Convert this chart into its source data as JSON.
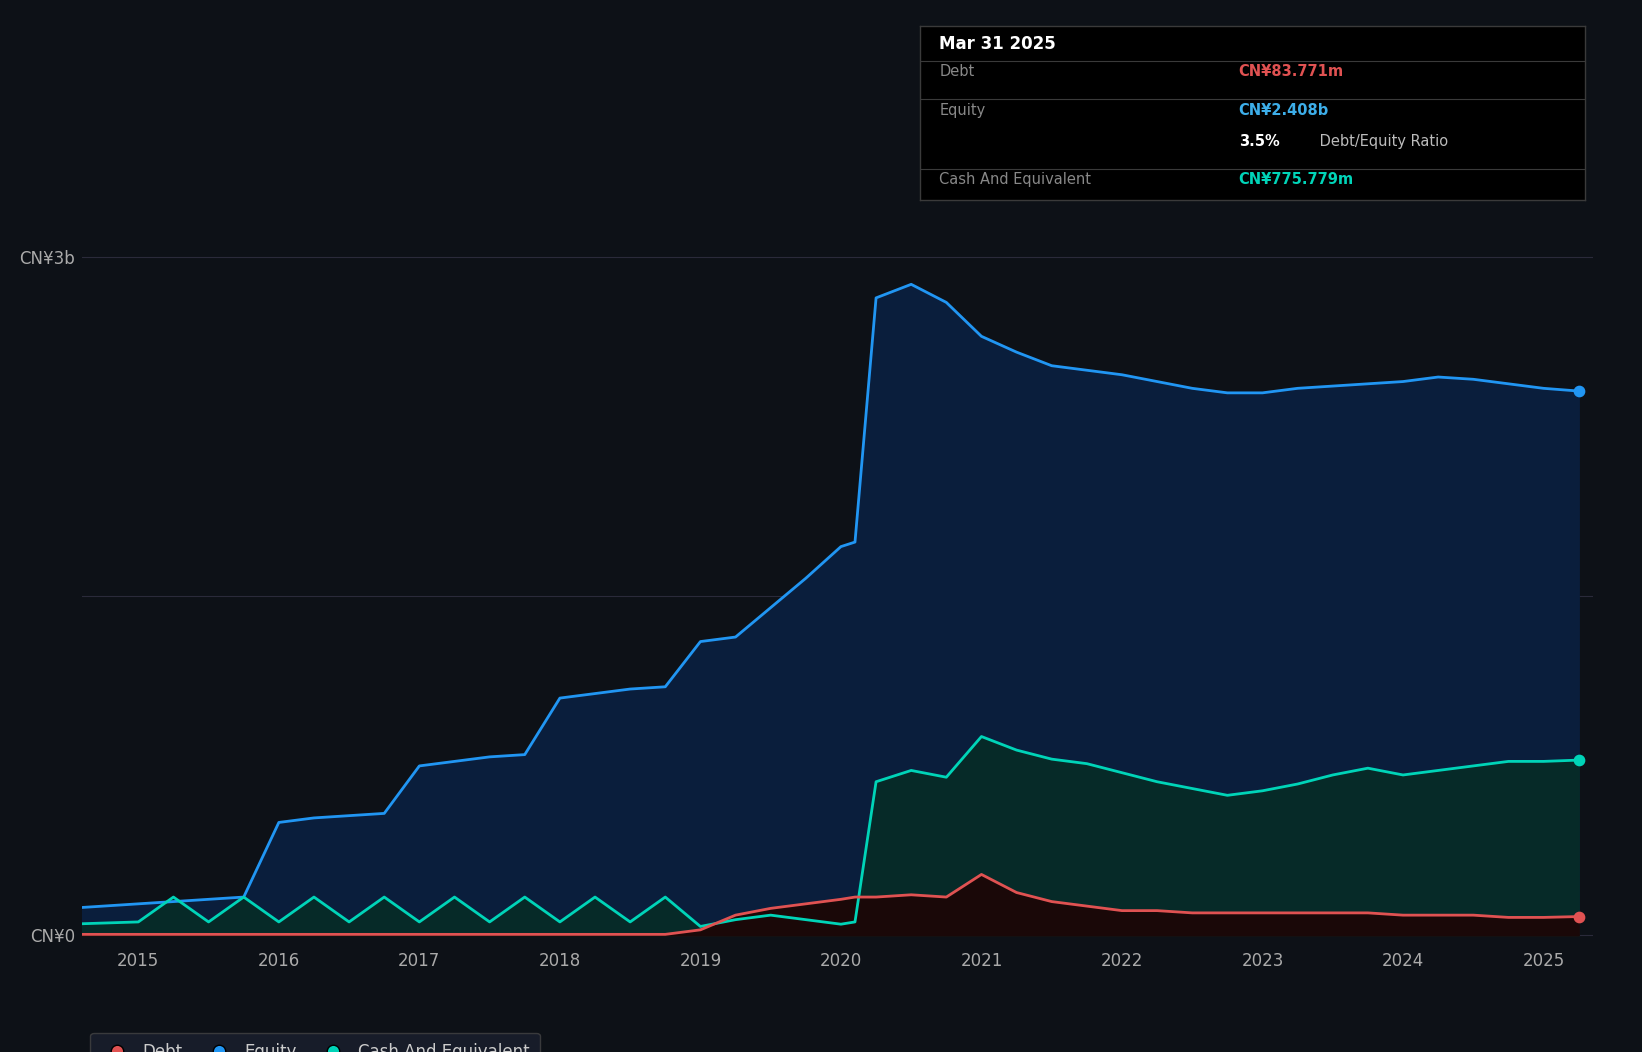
{
  "background_color": "#0d1117",
  "plot_bg_color": "#0d1117",
  "title_box": {
    "date": "Mar 31 2025",
    "debt_label": "Debt",
    "debt_value": "CN¥83.771m",
    "debt_color": "#e05252",
    "equity_label": "Equity",
    "equity_value": "CN¥2.408b",
    "equity_color": "#3daee9",
    "ratio_text_bold": "3.5%",
    "ratio_text_normal": " Debt/Equity Ratio",
    "cash_label": "Cash And Equivalent",
    "cash_value": "CN¥775.779m",
    "cash_color": "#00d4b8",
    "box_bg": "#000000",
    "box_border": "#3a3a3a"
  },
  "ymax": 3.3,
  "equity_color": "#2196f3",
  "equity_fill": "#0a2040",
  "debt_color": "#e05252",
  "cash_color": "#00d4b8",
  "cash_fill": "#062a28",
  "equity_data": {
    "dates": [
      2014.5,
      2015.0,
      2015.25,
      2015.5,
      2015.75,
      2016.0,
      2016.25,
      2016.5,
      2016.75,
      2017.0,
      2017.25,
      2017.5,
      2017.75,
      2018.0,
      2018.25,
      2018.5,
      2018.75,
      2019.0,
      2019.25,
      2019.5,
      2019.75,
      2020.0,
      2020.1,
      2020.25,
      2020.5,
      2020.75,
      2021.0,
      2021.25,
      2021.5,
      2021.75,
      2022.0,
      2022.25,
      2022.5,
      2022.75,
      2023.0,
      2023.25,
      2023.5,
      2023.75,
      2024.0,
      2024.25,
      2024.5,
      2024.75,
      2025.0,
      2025.25
    ],
    "values": [
      0.12,
      0.14,
      0.15,
      0.16,
      0.17,
      0.5,
      0.52,
      0.53,
      0.54,
      0.75,
      0.77,
      0.79,
      0.8,
      1.05,
      1.07,
      1.09,
      1.1,
      1.3,
      1.32,
      1.45,
      1.58,
      1.72,
      1.74,
      2.82,
      2.88,
      2.8,
      2.65,
      2.58,
      2.52,
      2.5,
      2.48,
      2.45,
      2.42,
      2.4,
      2.4,
      2.42,
      2.43,
      2.44,
      2.45,
      2.47,
      2.46,
      2.44,
      2.42,
      2.408
    ]
  },
  "cash_data": {
    "dates": [
      2014.5,
      2015.0,
      2015.25,
      2015.5,
      2015.75,
      2016.0,
      2016.25,
      2016.5,
      2016.75,
      2017.0,
      2017.25,
      2017.5,
      2017.75,
      2018.0,
      2018.25,
      2018.5,
      2018.75,
      2019.0,
      2019.25,
      2019.5,
      2019.75,
      2020.0,
      2020.1,
      2020.25,
      2020.5,
      2020.75,
      2021.0,
      2021.25,
      2021.5,
      2021.75,
      2022.0,
      2022.25,
      2022.5,
      2022.75,
      2023.0,
      2023.25,
      2023.5,
      2023.75,
      2024.0,
      2024.25,
      2024.5,
      2024.75,
      2025.0,
      2025.25
    ],
    "values": [
      0.05,
      0.06,
      0.17,
      0.06,
      0.17,
      0.06,
      0.17,
      0.06,
      0.17,
      0.06,
      0.17,
      0.06,
      0.17,
      0.06,
      0.17,
      0.06,
      0.17,
      0.04,
      0.07,
      0.09,
      0.07,
      0.05,
      0.06,
      0.68,
      0.73,
      0.7,
      0.88,
      0.82,
      0.78,
      0.76,
      0.72,
      0.68,
      0.65,
      0.62,
      0.64,
      0.67,
      0.71,
      0.74,
      0.71,
      0.73,
      0.75,
      0.77,
      0.77,
      0.7758
    ]
  },
  "debt_data": {
    "dates": [
      2014.5,
      2015.0,
      2015.25,
      2015.5,
      2015.75,
      2016.0,
      2016.25,
      2016.5,
      2016.75,
      2017.0,
      2017.25,
      2017.5,
      2017.75,
      2018.0,
      2018.25,
      2018.5,
      2018.75,
      2019.0,
      2019.25,
      2019.5,
      2019.75,
      2020.0,
      2020.1,
      2020.25,
      2020.5,
      2020.75,
      2021.0,
      2021.25,
      2021.5,
      2021.75,
      2022.0,
      2022.25,
      2022.5,
      2022.75,
      2023.0,
      2023.25,
      2023.5,
      2023.75,
      2024.0,
      2024.25,
      2024.5,
      2024.75,
      2025.0,
      2025.25
    ],
    "values": [
      0.005,
      0.005,
      0.005,
      0.005,
      0.005,
      0.005,
      0.005,
      0.005,
      0.005,
      0.005,
      0.005,
      0.005,
      0.005,
      0.005,
      0.005,
      0.005,
      0.005,
      0.025,
      0.09,
      0.12,
      0.14,
      0.16,
      0.17,
      0.17,
      0.18,
      0.17,
      0.27,
      0.19,
      0.15,
      0.13,
      0.11,
      0.11,
      0.1,
      0.1,
      0.1,
      0.1,
      0.1,
      0.1,
      0.09,
      0.09,
      0.09,
      0.08,
      0.08,
      0.08377
    ]
  },
  "legend": [
    {
      "label": "Debt",
      "color": "#e05252"
    },
    {
      "label": "Equity",
      "color": "#2196f3"
    },
    {
      "label": "Cash And Equivalent",
      "color": "#00d4b8"
    }
  ]
}
